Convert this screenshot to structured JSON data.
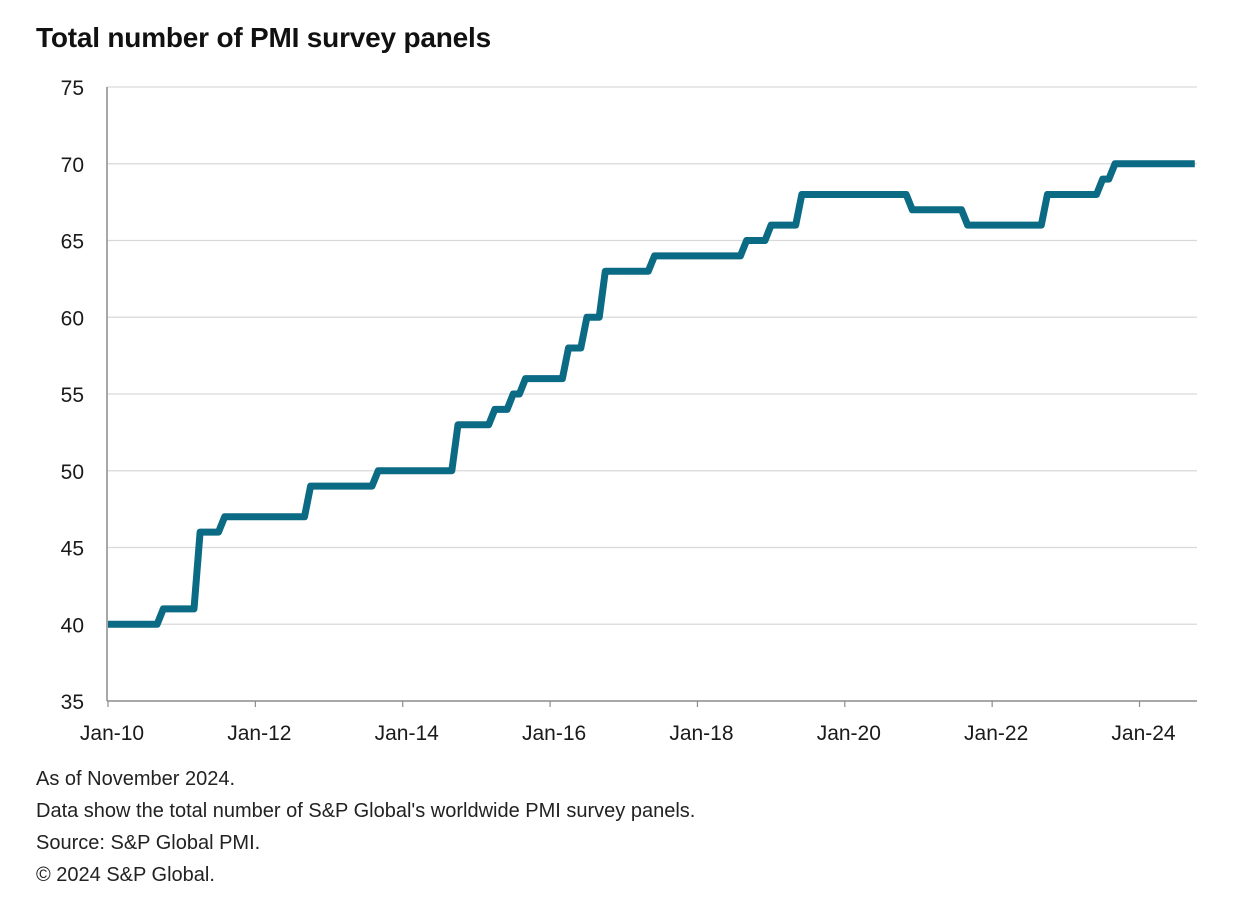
{
  "chart_data": {
    "type": "line",
    "title": "Total number of PMI survey panels",
    "xlabel": "",
    "ylabel": "",
    "ylim": [
      35,
      75
    ],
    "yticks": [
      35,
      40,
      45,
      50,
      55,
      60,
      65,
      70,
      75
    ],
    "xlim": [
      "2010-01",
      "2024-10"
    ],
    "xtick_labels": [
      "Jan-10",
      "Jan-12",
      "Jan-14",
      "Jan-16",
      "Jan-18",
      "Jan-20",
      "Jan-22",
      "Jan-24"
    ],
    "grid": "horizontal",
    "legend": "none",
    "line_color": "#0b6a84",
    "series": [
      {
        "name": "",
        "x": [
          "2010-01",
          "2010-09",
          "2010-10",
          "2011-03",
          "2011-04",
          "2011-07",
          "2011-08",
          "2012-09",
          "2012-10",
          "2013-08",
          "2013-09",
          "2014-09",
          "2014-10",
          "2015-03",
          "2015-04",
          "2015-06",
          "2015-07",
          "2015-08",
          "2015-09",
          "2016-03",
          "2016-04",
          "2016-06",
          "2016-07",
          "2016-09",
          "2016-10",
          "2017-05",
          "2017-06",
          "2018-08",
          "2018-09",
          "2018-12",
          "2019-01",
          "2019-05",
          "2019-06",
          "2020-11",
          "2020-12",
          "2021-08",
          "2021-09",
          "2022-09",
          "2022-10",
          "2023-06",
          "2023-07",
          "2023-08",
          "2023-09",
          "2024-10"
        ],
        "y": [
          40,
          40,
          41,
          41,
          46,
          46,
          47,
          47,
          49,
          49,
          50,
          50,
          53,
          53,
          54,
          54,
          55,
          55,
          56,
          56,
          58,
          58,
          60,
          60,
          63,
          63,
          64,
          64,
          65,
          65,
          66,
          66,
          68,
          68,
          67,
          67,
          66,
          66,
          68,
          68,
          69,
          69,
          70,
          70
        ]
      }
    ]
  },
  "notes": {
    "as_of": "As of November 2024.",
    "description": "Data show the total number of S&P Global's worldwide PMI survey panels.",
    "source": "Source: S&P Global PMI.",
    "copyright": "© 2024 S&P Global."
  },
  "colors": {
    "axis": "#8c8c8c",
    "grid": "#d9d9d9",
    "text": "#1a1a1a"
  }
}
